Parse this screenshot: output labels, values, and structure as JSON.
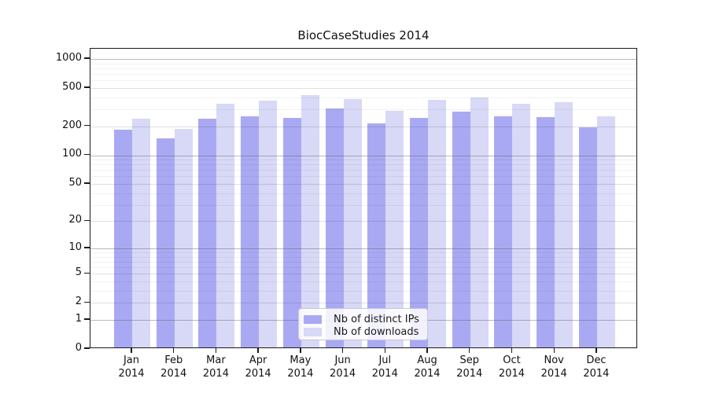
{
  "chart_data": {
    "type": "bar",
    "title": "BiocCaseStudies 2014",
    "categories": [
      "Jan 2014",
      "Feb 2014",
      "Mar 2014",
      "Apr 2014",
      "May 2014",
      "Jun 2014",
      "Jul 2014",
      "Aug 2014",
      "Sep 2014",
      "Oct 2014",
      "Nov 2014",
      "Dec 2014"
    ],
    "series": [
      {
        "name": "Nb of distinct IPs",
        "color": "#a9a9f3",
        "values": [
          178,
          145,
          231,
          245,
          236,
          295,
          207,
          236,
          275,
          245,
          240,
          189
        ]
      },
      {
        "name": "Nb of downloads",
        "color": "#d8d8f7",
        "values": [
          231,
          181,
          330,
          356,
          406,
          370,
          280,
          363,
          385,
          330,
          343,
          245
        ]
      }
    ],
    "xlabel": "",
    "ylabel": "",
    "y_scale": "log10(value+1)",
    "y_ticks": [
      0,
      1,
      2,
      5,
      10,
      20,
      50,
      100,
      200,
      500,
      1000
    ],
    "y_tick_labels": [
      "0",
      "1",
      "2",
      "5",
      "10",
      "20",
      "50",
      "100",
      "200",
      "500",
      "1000"
    ],
    "ylim": [
      0,
      1280
    ],
    "grid": "log minor + major horizontal gridlines",
    "legend_position": "lower center",
    "grid_major_values": [
      1,
      10,
      100,
      1000
    ],
    "grid_mid_values": [
      2,
      5,
      20,
      50,
      200,
      500
    ],
    "grid_minor_values": [
      3,
      4,
      6,
      7,
      8,
      9,
      30,
      40,
      60,
      70,
      80,
      90,
      300,
      400,
      600,
      700,
      800,
      900
    ]
  }
}
